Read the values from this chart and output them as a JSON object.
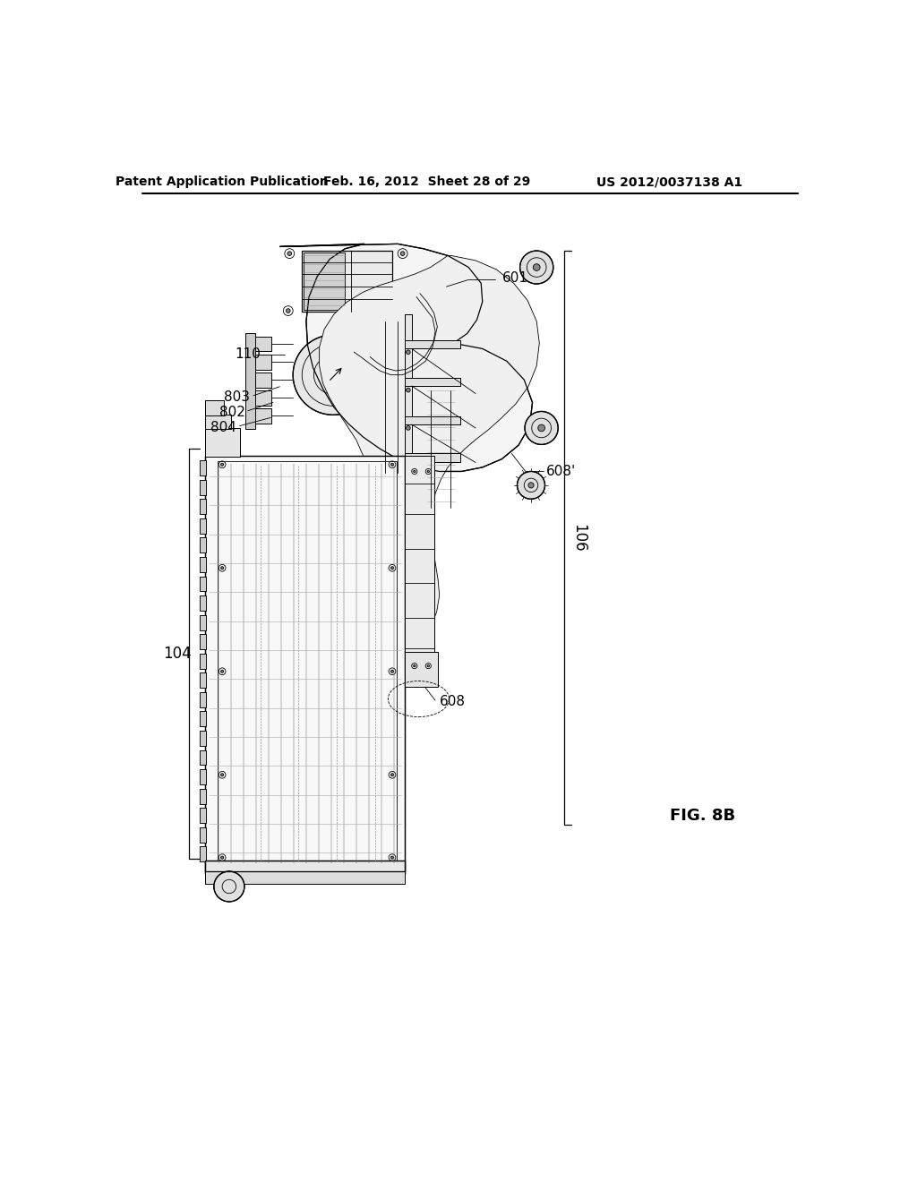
{
  "bg_color": "#ffffff",
  "line_color": "#000000",
  "header_left": "Patent Application Publication",
  "header_center": "Feb. 16, 2012  Sheet 28 of 29",
  "header_right": "US 2012/0037138 A1",
  "fig_label": "FIG. 8B"
}
